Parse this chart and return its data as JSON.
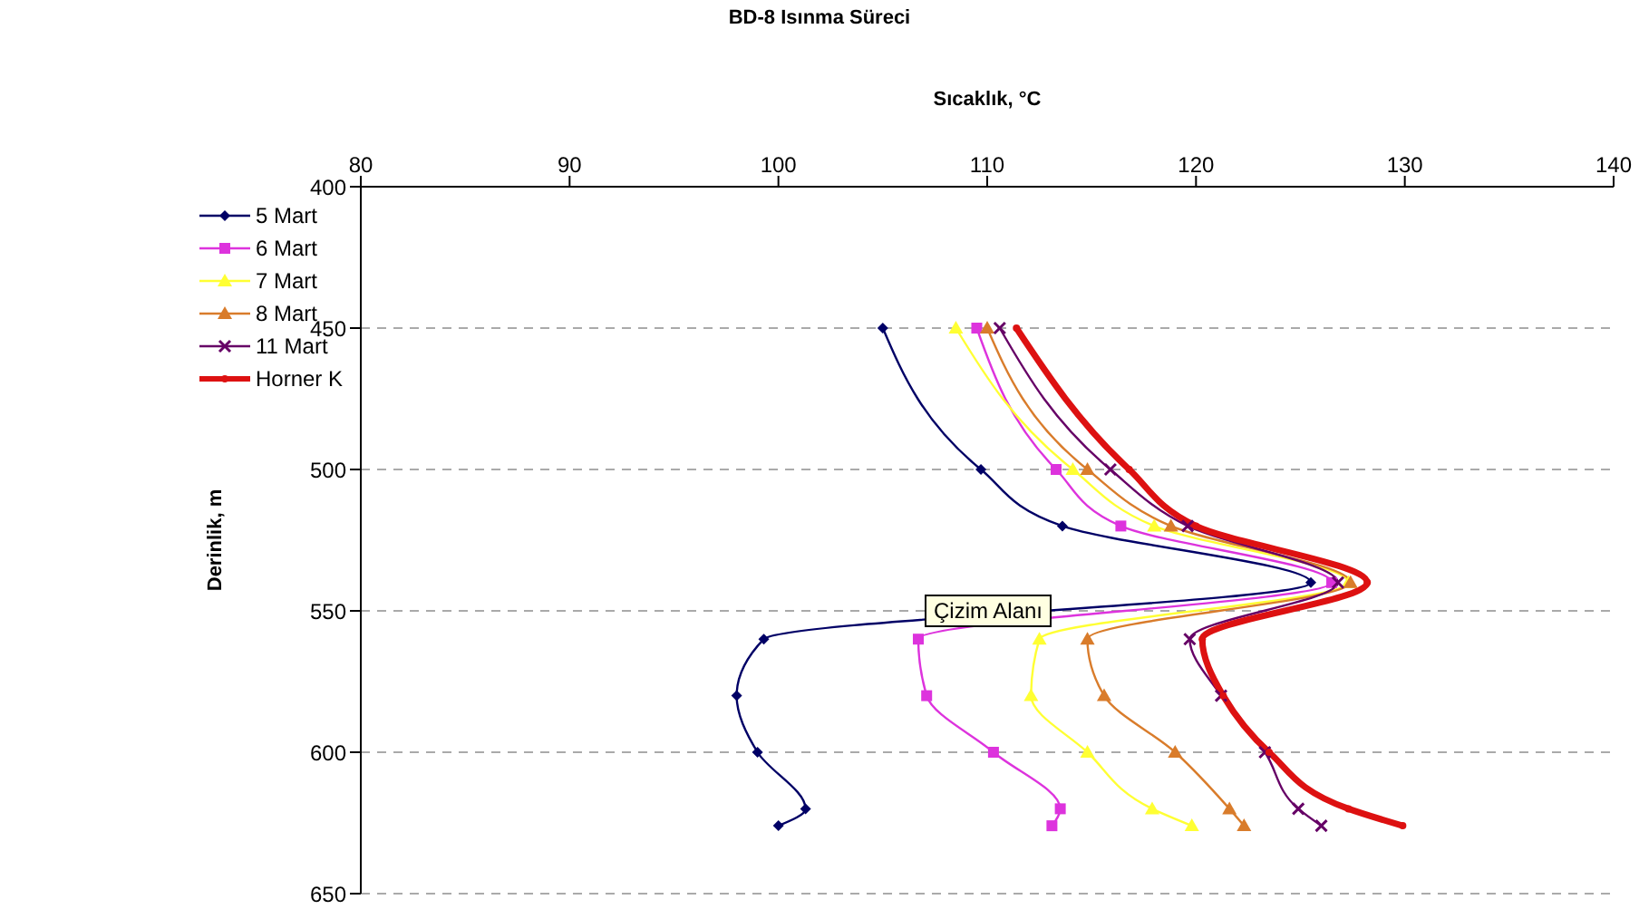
{
  "chart_data": {
    "type": "line",
    "title": "BD-8 Isınma Süreci",
    "xlabel": "Sıcaklık, °C",
    "ylabel": "Derinlik, m",
    "orientation": "horizontal",
    "x": [
      450,
      500,
      520,
      540,
      560,
      580,
      600,
      620,
      626
    ],
    "series": [
      {
        "name": "5 Mart",
        "color": "#000066",
        "marker": "diamond",
        "values": [
          105.0,
          109.7,
          113.6,
          125.5,
          99.3,
          98.0,
          99.0,
          101.3,
          100.0
        ]
      },
      {
        "name": "6 Mart",
        "color": "#dd33dd",
        "marker": "square",
        "values": [
          109.5,
          113.3,
          116.4,
          126.5,
          106.7,
          107.1,
          110.3,
          113.5,
          113.1
        ]
      },
      {
        "name": "7 Mart",
        "color": "#ffff33",
        "marker": "triangle",
        "values": [
          108.5,
          114.1,
          118.0,
          127.3,
          112.5,
          112.1,
          114.8,
          117.9,
          119.8
        ]
      },
      {
        "name": "8 Mart",
        "color": "#d97c2b",
        "marker": "triangle",
        "values": [
          110.0,
          114.8,
          118.8,
          127.4,
          114.8,
          115.6,
          119.0,
          121.6,
          122.3
        ]
      },
      {
        "name": "11 Mart",
        "color": "#660066",
        "marker": "cross",
        "values": [
          110.6,
          115.9,
          119.6,
          126.8,
          119.7,
          121.2,
          123.3,
          124.9,
          126.0
        ]
      },
      {
        "name": "Horner K",
        "color": "#dd1111",
        "marker": "circle",
        "values": [
          111.4,
          116.8,
          120.0,
          128.2,
          120.3,
          121.3,
          123.5,
          127.3,
          129.9
        ]
      }
    ],
    "xlim": [
      80,
      140
    ],
    "xticks": [
      80,
      90,
      100,
      110,
      120,
      130,
      140
    ],
    "ylim": [
      650,
      400
    ],
    "yticks": [
      400,
      450,
      500,
      550,
      600,
      650
    ],
    "grid": "y",
    "legend": "top left",
    "line_style": "solid",
    "annotations": [
      "Çizim Alanı"
    ]
  }
}
